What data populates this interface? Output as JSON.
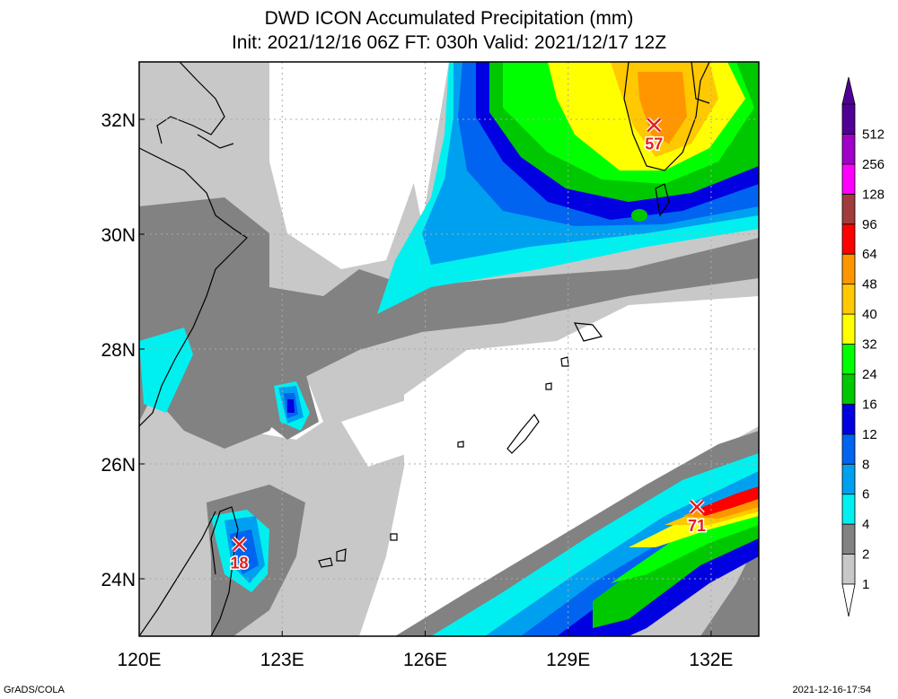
{
  "header": {
    "title": "DWD ICON Accumulated Precipitation (mm)",
    "subtitle": "Init: 2021/12/16 06Z  FT: 030h  Valid: 2021/12/17 12Z"
  },
  "map": {
    "lon_range": [
      120,
      133
    ],
    "lat_range": [
      23,
      33
    ],
    "lon_ticks": [
      "120E",
      "123E",
      "126E",
      "129E",
      "132E"
    ],
    "lat_ticks": [
      "24N",
      "26N",
      "28N",
      "30N",
      "32N"
    ],
    "grid": true,
    "projection": "lat-lon"
  },
  "legend": {
    "levels": [
      "1",
      "2",
      "4",
      "6",
      "8",
      "12",
      "16",
      "24",
      "32",
      "40",
      "48",
      "64",
      "96",
      "128",
      "256",
      "512"
    ],
    "colors": [
      "#c8c8c8",
      "#828282",
      "#00f0f0",
      "#00a0f0",
      "#0064f0",
      "#0000e1",
      "#00c800",
      "#00ff00",
      "#ffff00",
      "#ffc800",
      "#ff9600",
      "#ff0000",
      "#a03c3c",
      "#ff00ff",
      "#a000c8",
      "#500096"
    ],
    "unit": "mm"
  },
  "markers": [
    {
      "label": "57",
      "lon": 130.8,
      "lat": 31.9
    },
    {
      "label": "71",
      "lon": 131.7,
      "lat": 25.25
    },
    {
      "label": "18",
      "lon": 122.1,
      "lat": 24.6
    }
  ],
  "footer": {
    "credit": "GrADS/COLA",
    "timestamp": "2021-12-16-17:54"
  }
}
